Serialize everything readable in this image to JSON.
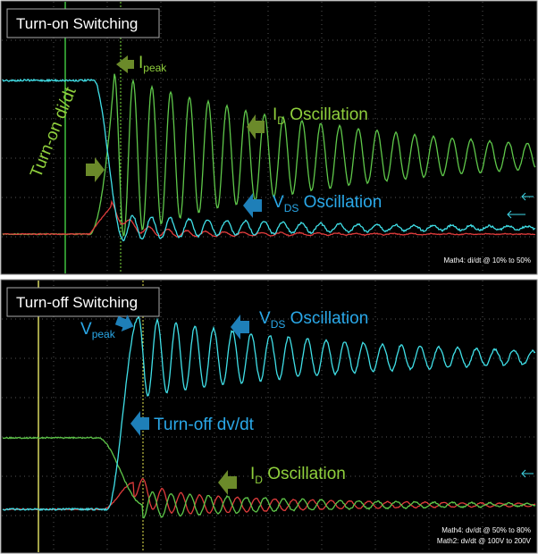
{
  "top": {
    "title": "Turn-on Switching",
    "peak": {
      "main": "I",
      "sub": "peak"
    },
    "osc_i": {
      "main": "I",
      "sub": "D",
      "rest": " Oscillation"
    },
    "osc_v": {
      "main": "V",
      "sub": "DS",
      "rest": " Oscillation"
    },
    "slope": "Turn-on di/dt",
    "math": [
      "Math4: di/dt @ 10% to 50%"
    ]
  },
  "bottom": {
    "title": "Turn-off Switching",
    "peak": {
      "main": "V",
      "sub": "peak"
    },
    "osc_v": {
      "main": "V",
      "sub": "DS",
      "rest": " Oscillation"
    },
    "osc_i": {
      "main": "I",
      "sub": "D",
      "rest": " Oscillation"
    },
    "slope": "Turn-off dv/dt",
    "math": [
      "Math4: dv/dt @ 50% to 80%",
      "Math2: dv/dt @ 100V to 200V"
    ]
  }
}
